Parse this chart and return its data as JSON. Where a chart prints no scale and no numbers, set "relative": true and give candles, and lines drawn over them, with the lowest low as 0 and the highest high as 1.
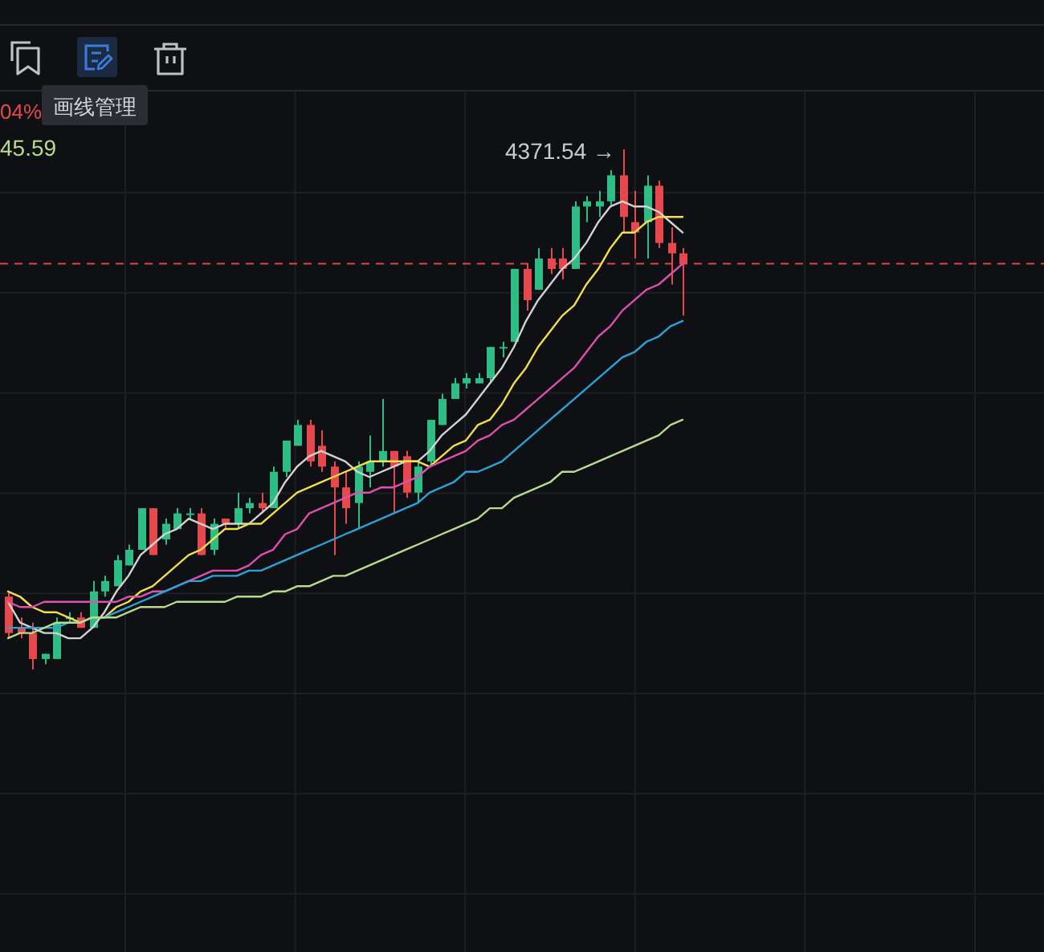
{
  "chart_data": {
    "type": "candlestick",
    "relative": true,
    "grid": true,
    "categories": [
      null,
      null,
      null,
      null,
      null,
      null,
      null,
      null,
      null,
      null,
      null,
      null,
      null,
      null,
      null,
      null,
      null,
      null,
      null,
      null,
      null,
      null,
      null,
      null,
      null,
      null,
      null,
      null,
      null,
      null,
      null,
      null,
      null,
      null,
      null,
      null,
      null,
      null,
      null,
      null,
      null,
      null,
      null,
      null,
      null,
      null,
      null,
      null,
      null,
      null,
      null,
      null,
      null,
      null,
      null,
      null,
      null
    ],
    "ohlc": [
      [
        0.14,
        0.15,
        0.06,
        0.07
      ],
      [
        0.08,
        0.1,
        0.06,
        0.07
      ],
      [
        0.07,
        0.09,
        0.0,
        0.02
      ],
      [
        0.02,
        0.03,
        0.01,
        0.03
      ],
      [
        0.02,
        0.1,
        0.02,
        0.09
      ],
      [
        0.1,
        0.11,
        0.09,
        0.1
      ],
      [
        0.1,
        0.11,
        0.08,
        0.08
      ],
      [
        0.08,
        0.17,
        0.08,
        0.15
      ],
      [
        0.15,
        0.18,
        0.14,
        0.17
      ],
      [
        0.16,
        0.22,
        0.16,
        0.21
      ],
      [
        0.2,
        0.24,
        0.2,
        0.23
      ],
      [
        0.23,
        0.31,
        0.23,
        0.31
      ],
      [
        0.31,
        0.31,
        0.22,
        0.22
      ],
      [
        0.25,
        0.29,
        0.24,
        0.28
      ],
      [
        0.27,
        0.31,
        0.27,
        0.3
      ],
      [
        0.3,
        0.31,
        0.29,
        0.3
      ],
      [
        0.3,
        0.31,
        0.22,
        0.22
      ],
      [
        0.23,
        0.29,
        0.22,
        0.28
      ],
      [
        0.29,
        0.29,
        0.27,
        0.28
      ],
      [
        0.28,
        0.34,
        0.27,
        0.31
      ],
      [
        0.31,
        0.33,
        0.3,
        0.32
      ],
      [
        0.32,
        0.34,
        0.3,
        0.31
      ],
      [
        0.31,
        0.39,
        0.31,
        0.38
      ],
      [
        0.38,
        0.44,
        0.37,
        0.44
      ],
      [
        0.43,
        0.48,
        0.43,
        0.47
      ],
      [
        0.47,
        0.48,
        0.39,
        0.4
      ],
      [
        0.43,
        0.46,
        0.38,
        0.39
      ],
      [
        0.39,
        0.4,
        0.22,
        0.35
      ],
      [
        0.35,
        0.38,
        0.28,
        0.31
      ],
      [
        0.32,
        0.4,
        0.27,
        0.39
      ],
      [
        0.38,
        0.45,
        0.35,
        0.4
      ],
      [
        0.4,
        0.52,
        0.39,
        0.42
      ],
      [
        0.42,
        0.42,
        0.3,
        0.39
      ],
      [
        0.41,
        0.42,
        0.33,
        0.34
      ],
      [
        0.34,
        0.4,
        0.32,
        0.39
      ],
      [
        0.4,
        0.48,
        0.39,
        0.48
      ],
      [
        0.47,
        0.53,
        0.47,
        0.52
      ],
      [
        0.52,
        0.56,
        0.52,
        0.55
      ],
      [
        0.55,
        0.57,
        0.54,
        0.56
      ],
      [
        0.55,
        0.57,
        0.55,
        0.56
      ],
      [
        0.56,
        0.62,
        0.55,
        0.62
      ],
      [
        0.62,
        0.63,
        0.6,
        0.62
      ],
      [
        0.63,
        0.77,
        0.63,
        0.77
      ],
      [
        0.77,
        0.78,
        0.69,
        0.71
      ],
      [
        0.73,
        0.81,
        0.73,
        0.79
      ],
      [
        0.79,
        0.81,
        0.76,
        0.77
      ],
      [
        0.79,
        0.81,
        0.75,
        0.77
      ],
      [
        0.77,
        0.9,
        0.77,
        0.89
      ],
      [
        0.89,
        0.91,
        0.86,
        0.9
      ],
      [
        0.89,
        0.92,
        0.87,
        0.9
      ],
      [
        0.9,
        0.96,
        0.89,
        0.95
      ],
      [
        0.95,
        1.0,
        0.84,
        0.87
      ],
      [
        0.86,
        0.92,
        0.79,
        0.84
      ],
      [
        0.86,
        0.95,
        0.79,
        0.93
      ],
      [
        0.93,
        0.94,
        0.81,
        0.82
      ],
      [
        0.82,
        0.85,
        0.74,
        0.8
      ],
      [
        0.8,
        0.81,
        0.68,
        0.78
      ]
    ],
    "colors": [
      "#e5484d",
      "#e5484d",
      "#e5484d",
      "#2ebd85",
      "#2ebd85",
      "#2ebd85",
      "#e5484d",
      "#2ebd85",
      "#2ebd85",
      "#2ebd85",
      "#2ebd85",
      "#2ebd85",
      "#e5484d",
      "#2ebd85",
      "#2ebd85",
      "#2ebd85",
      "#e5484d",
      "#2ebd85",
      "#e5484d",
      "#2ebd85",
      "#2ebd85",
      "#e5484d",
      "#2ebd85",
      "#2ebd85",
      "#2ebd85",
      "#e5484d",
      "#e5484d",
      "#e5484d",
      "#e5484d",
      "#2ebd85",
      "#2ebd85",
      "#2ebd85",
      "#e5484d",
      "#e5484d",
      "#2ebd85",
      "#2ebd85",
      "#2ebd85",
      "#2ebd85",
      "#2ebd85",
      "#2ebd85",
      "#2ebd85",
      "#2ebd85",
      "#2ebd85",
      "#e5484d",
      "#2ebd85",
      "#e5484d",
      "#e5484d",
      "#2ebd85",
      "#2ebd85",
      "#2ebd85",
      "#2ebd85",
      "#e5484d",
      "#e5484d",
      "#2ebd85",
      "#e5484d",
      "#e5484d",
      "#e5484d"
    ],
    "series": [
      {
        "type": "line",
        "color": "#d2d2d2",
        "values": [
          0.13,
          0.09,
          0.08,
          0.07,
          0.07,
          0.06,
          0.06,
          0.08,
          0.11,
          0.15,
          0.18,
          0.22,
          0.24,
          0.26,
          0.27,
          0.29,
          0.28,
          0.27,
          0.28,
          0.28,
          0.28,
          0.3,
          0.32,
          0.36,
          0.39,
          0.41,
          0.42,
          0.41,
          0.4,
          0.38,
          0.37,
          0.38,
          0.39,
          0.4,
          0.4,
          0.42,
          0.45,
          0.47,
          0.49,
          0.52,
          0.55,
          0.58,
          0.62,
          0.67,
          0.71,
          0.74,
          0.77,
          0.79,
          0.82,
          0.86,
          0.89,
          0.9,
          0.89,
          0.89,
          0.88,
          0.86,
          0.84
        ]
      },
      {
        "type": "line",
        "color": "#f3df4a",
        "values": [
          0.15,
          0.14,
          0.12,
          0.11,
          0.11,
          0.1,
          0.09,
          0.1,
          0.1,
          0.12,
          0.13,
          0.15,
          0.16,
          0.18,
          0.2,
          0.22,
          0.23,
          0.25,
          0.27,
          0.27,
          0.28,
          0.28,
          0.3,
          0.32,
          0.34,
          0.35,
          0.36,
          0.37,
          0.38,
          0.39,
          0.4,
          0.4,
          0.4,
          0.4,
          0.4,
          0.39,
          0.41,
          0.43,
          0.44,
          0.47,
          0.48,
          0.51,
          0.55,
          0.58,
          0.62,
          0.65,
          0.68,
          0.7,
          0.74,
          0.77,
          0.81,
          0.84,
          0.84,
          0.86,
          0.87,
          0.87,
          0.87
        ]
      },
      {
        "type": "line",
        "color": "#de4fae",
        "values": [
          0.13,
          0.12,
          0.12,
          0.13,
          0.13,
          0.13,
          0.13,
          0.13,
          0.13,
          0.13,
          0.14,
          0.14,
          0.15,
          0.15,
          0.16,
          0.17,
          0.18,
          0.19,
          0.19,
          0.19,
          0.2,
          0.22,
          0.23,
          0.26,
          0.27,
          0.3,
          0.31,
          0.32,
          0.33,
          0.34,
          0.34,
          0.35,
          0.35,
          0.36,
          0.37,
          0.39,
          0.4,
          0.41,
          0.42,
          0.44,
          0.45,
          0.47,
          0.48,
          0.5,
          0.52,
          0.54,
          0.56,
          0.58,
          0.61,
          0.64,
          0.66,
          0.69,
          0.71,
          0.73,
          0.74,
          0.76,
          0.78
        ]
      },
      {
        "type": "line",
        "color": "#2ba3d9",
        "values": [
          0.08,
          0.08,
          0.08,
          0.08,
          0.08,
          0.09,
          0.09,
          0.1,
          0.1,
          0.11,
          0.12,
          0.13,
          0.14,
          0.15,
          0.16,
          0.17,
          0.17,
          0.18,
          0.18,
          0.18,
          0.19,
          0.19,
          0.2,
          0.21,
          0.22,
          0.23,
          0.24,
          0.25,
          0.26,
          0.27,
          0.28,
          0.29,
          0.3,
          0.31,
          0.32,
          0.34,
          0.35,
          0.36,
          0.38,
          0.38,
          0.39,
          0.4,
          0.42,
          0.44,
          0.46,
          0.48,
          0.5,
          0.52,
          0.54,
          0.56,
          0.58,
          0.6,
          0.61,
          0.63,
          0.64,
          0.66,
          0.67
        ]
      },
      {
        "type": "line",
        "color": "#b8dc8c",
        "values": [
          0.06,
          0.07,
          0.07,
          0.08,
          0.09,
          0.09,
          0.09,
          0.1,
          0.1,
          0.1,
          0.11,
          0.12,
          0.12,
          0.12,
          0.13,
          0.13,
          0.13,
          0.13,
          0.13,
          0.14,
          0.14,
          0.14,
          0.15,
          0.15,
          0.16,
          0.16,
          0.17,
          0.18,
          0.18,
          0.19,
          0.2,
          0.21,
          0.22,
          0.23,
          0.24,
          0.25,
          0.26,
          0.27,
          0.28,
          0.29,
          0.31,
          0.31,
          0.33,
          0.34,
          0.35,
          0.36,
          0.38,
          0.38,
          0.39,
          0.4,
          0.41,
          0.42,
          0.43,
          0.44,
          0.45,
          0.47,
          0.48
        ]
      }
    ],
    "ref_lines": [
      {
        "axis": "y",
        "value": 0.78,
        "color": "#d9474c",
        "line_style": "dashed"
      }
    ],
    "annotations": [
      "4371.54 →",
      "04%",
      "45.59",
      "画线管理"
    ]
  }
}
